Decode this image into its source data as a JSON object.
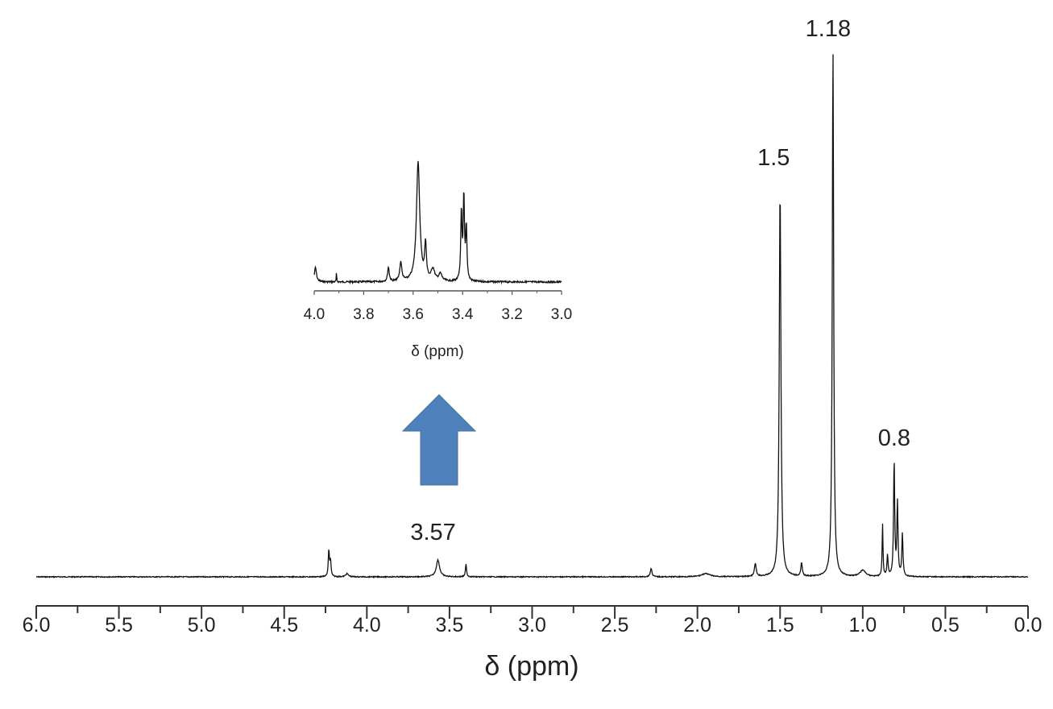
{
  "chart_data": [
    {
      "type": "line",
      "title": "",
      "xlabel": "δ (ppm)",
      "ylabel": "",
      "xlim": [
        6.0,
        0.0
      ],
      "x_ticks": [
        "6.0",
        "5.5",
        "5.0",
        "4.5",
        "4.0",
        "3.5",
        "3.0",
        "2.5",
        "2.0",
        "1.5",
        "1.0",
        "0.5",
        "0.0"
      ],
      "annotations": [
        "3.57",
        "1.5",
        "1.18",
        "0.8"
      ],
      "annotation_positions_ppm": [
        3.57,
        1.5,
        1.18,
        0.8
      ],
      "peaks": [
        {
          "shift": 4.23,
          "intensity": 5,
          "width": 0.004
        },
        {
          "shift": 4.22,
          "intensity": 3,
          "width": 0.004
        },
        {
          "shift": 4.12,
          "intensity": 0.6,
          "width": 0.01
        },
        {
          "shift": 3.57,
          "intensity": 3.2,
          "width": 0.012
        },
        {
          "shift": 3.4,
          "intensity": 2.4,
          "width": 0.004
        },
        {
          "shift": 2.28,
          "intensity": 1.6,
          "width": 0.006
        },
        {
          "shift": 1.95,
          "intensity": 0.6,
          "width": 0.03
        },
        {
          "shift": 1.65,
          "intensity": 2.5,
          "width": 0.006
        },
        {
          "shift": 1.5,
          "intensity": 73.5,
          "width": 0.006
        },
        {
          "shift": 1.37,
          "intensity": 2.5,
          "width": 0.005
        },
        {
          "shift": 1.18,
          "intensity": 100,
          "width": 0.005
        },
        {
          "shift": 1.0,
          "intensity": 1.2,
          "width": 0.02
        },
        {
          "shift": 0.88,
          "intensity": 10,
          "width": 0.003
        },
        {
          "shift": 0.85,
          "intensity": 4,
          "width": 0.004
        },
        {
          "shift": 0.81,
          "intensity": 22,
          "width": 0.004
        },
        {
          "shift": 0.79,
          "intensity": 14,
          "width": 0.004
        },
        {
          "shift": 0.76,
          "intensity": 8,
          "width": 0.004
        }
      ]
    },
    {
      "type": "line",
      "title": "inset",
      "xlabel": "δ (ppm)",
      "xlim": [
        4.0,
        3.0
      ],
      "x_ticks": [
        "4.0",
        "3.8",
        "3.6",
        "3.4",
        "3.2",
        "3.0"
      ],
      "peaks": [
        {
          "shift": 3.995,
          "intensity": 12,
          "width": 0.005
        },
        {
          "shift": 3.91,
          "intensity": 8,
          "width": 0.001
        },
        {
          "shift": 3.7,
          "intensity": 12,
          "width": 0.004
        },
        {
          "shift": 3.65,
          "intensity": 16,
          "width": 0.005
        },
        {
          "shift": 3.58,
          "intensity": 100,
          "width": 0.008
        },
        {
          "shift": 3.55,
          "intensity": 30,
          "width": 0.004
        },
        {
          "shift": 3.52,
          "intensity": 10,
          "width": 0.008
        },
        {
          "shift": 3.49,
          "intensity": 6,
          "width": 0.008
        },
        {
          "shift": 3.405,
          "intensity": 58,
          "width": 0.003
        },
        {
          "shift": 3.395,
          "intensity": 70,
          "width": 0.003
        },
        {
          "shift": 3.385,
          "intensity": 45,
          "width": 0.003
        }
      ]
    }
  ],
  "arrow_color": "#4F81BD"
}
